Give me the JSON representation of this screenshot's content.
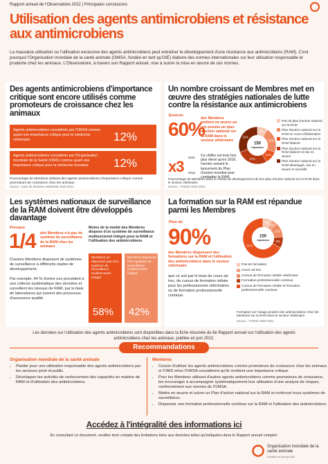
{
  "header": {
    "report": "Rapport annuel de l'Observatoire 2022 | Principales conclusions",
    "title": "Utilisation des agents antimicrobiens et résistance aux antimicrobiens"
  },
  "intro": "La mauvaise utilisation ou l'utilisation excessive des agents antimicrobiens peut entraîner le développement d'une résistance aux antimicrobiens (RAM). C'est pourquoi l'Organisation mondiale de la santé animale (OMSA, fondée en tant qu'OIE) élabore des normes internationales sur leur utilisation responsable et prudente chez les animaux. L'Observatoire, à travers son Rapport annuel, vise à suivre la mise en œuvre de ces normes.",
  "section1": {
    "title": "Des agents antimicrobiens d'importance critique sont encore utilisés comme promoteurs de croissance chez les animaux",
    "stats": [
      {
        "text": "Agents antimicrobiens considérés par l'OMSA comme ayant une importance critique pour la médecine vétérinaire",
        "value": "12%"
      },
      {
        "text": "Agents antimicrobiens considérés par l'Organisation mondiale de la Santé (OMS) comme ayant une importance critique pour la médecine humaine",
        "value": "12%"
      }
    ],
    "note": "Pourcentage de Membres utilisant des agents antimicrobiens d'importance critique comme promoteurs de croissance chez les animaux",
    "source": "Source : base de données ANIMUSE 2020-2021"
  },
  "section2": {
    "title": "Un nombre croissant de Membres met en œuvre des stratégies nationales de lutte contre la résistance aux antimicrobiens",
    "prefix": "Environ",
    "big": "60%",
    "big_text": "des Membres mettent en œuvre ou ont soumis un plan d'action national sur la RAM dans le secteur vétérinaire",
    "times": "x3",
    "years": [
      "2021",
      "2016"
    ],
    "times_text": "Ce chiffre est trois fois plus élevé qu'en 2016, l'année suivant le lancement du Plan d'action mondial pour combattre la RAM",
    "donut": {
      "center": [
        "150",
        "réponses"
      ],
      "segments": [
        {
          "label": "Pas de plan d'action national sur la RAM",
          "value": 9,
          "value_label": "9%",
          "color": "#f7c9b3"
        },
        {
          "label": "Plan d'action national sur la RAM en cours d'élaboration",
          "value": 22,
          "value_label": "22%",
          "color": "#f08c63"
        },
        {
          "label": "Plan d'action national sur la RAM élaboré",
          "value": 11,
          "value_label": "11%",
          "color": "#e8501c"
        },
        {
          "label": "Plan d'action national sur la RAM élaboré et mis en œuvre",
          "value": 27,
          "value_label": "27%",
          "color": "#b73a12"
        },
        {
          "label": "Plan d'action national sur la RAM développé, mis en œuvre et surveillé",
          "value": 31,
          "value_label": "31%",
          "color": "#7d2608"
        }
      ]
    },
    "note": "Pourcentage de Membres selon le niveau de développement de leur plan d'action national sur la RAM dans le secteur vétérinaire",
    "source": "Source : THOSS 2020-2021"
  },
  "section3": {
    "title": "Les systèmes nationaux de surveillance de la RAM doivent être développés davantage",
    "prefix": "Presque",
    "big": "1/4",
    "big_text": "des Membres n'a pas de système de surveillance de la RAM chez les animaux",
    "para1": "D'autres Membres disposent de systèmes de surveillance à différents stades de développement.",
    "para2": "Par exemple, 44 % d'entre eux procèdent à une collecte systématique des données et surveillent les niveaux de RAM, par le biais de laboratoires qui suivent des processus d'assurance qualité.",
    "box_title": "Moins de la moitié des Membres dispose d'un système de surveillance multisectoriel intégré pour la RAM et l'utilisation des antimicrobiens",
    "bars": [
      {
        "text": "Membres ne disposant pas d'un système de surveillance multisectoriel intégré",
        "value": "58%"
      },
      {
        "text": "Membres disposant d'un système de surveillance multisectoriel intégré",
        "value": "42%"
      }
    ]
  },
  "section4": {
    "title": "La formation sur la RAM est répandue parmi les Membres",
    "prefix": "Plus de",
    "big": "90%",
    "big_text": "des Membres dispensent des formations sur la RAM et l'utilisation des antimicrobiens dans le secteur vétérinaire",
    "para": "que ce soit par le biais de cours ad hoc, de cursus de formation initiale pour les professionnels vétérinaires ou de formation professionnelle continue.",
    "donut": {
      "center": [
        "150",
        "réponses"
      ],
      "segments": [
        {
          "label": "Pas de formation",
          "value": 7,
          "value_label": "7%",
          "color": "#f7c9b3"
        },
        {
          "label": "Cours ad hoc",
          "value": 5,
          "value_label": "5%",
          "color": "#f3a583"
        },
        {
          "label": "Cursus de formation initiale vétérinaire",
          "value": 12,
          "value_label": "12%",
          "color": "#f08c63"
        },
        {
          "label": "Formation professionnelle continue",
          "value": 9,
          "value_label": "9%",
          "color": "#b73a12"
        },
        {
          "label": "Cursus de formation initiale et formation professionnelle continue",
          "value": 67,
          "value_label": "67%",
          "color": "#e8501c"
        }
      ]
    },
    "note": "Formation sur l'usage prudent des antimicrobiens chez les Membres sur la RAM dans le secteur vétérinaire",
    "source": "Source : THOSS 2020-2021"
  },
  "data_note": "Les données sur l'utilisation des agents antimicrobiens sont disponibles dans la fiche résumée du 6e Rapport annuel sur l'utilisation des agents antimicrobiens chez les animaux, publiée en juin 2022.",
  "recommendations": {
    "title": "Recommandations",
    "left": {
      "heading": "Organisation mondiale de la santé animale",
      "items": [
        "Plaider pour une utilisation responsable des agents antimicrobiens par les secteurs privé et public.",
        "Développer les activités de renforcement des capacités en matière de RAM et d'utilisation des antimicrobiens."
      ]
    },
    "right": {
      "heading": "Membres",
      "items": [
        "Cesser d'utiliser les agents antimicrobiens comme promoteurs de croissance chez les animaux si l'OMS et/ou l'OMSA considèrent qu'ils revêtent une importance critique.",
        "Pour les Membres utilisant d'autres agents antimicrobiens comme promoteurs de croissance, les encourager à accompagner systématiquement leur utilisation d'une analyse de risques, conformément aux normes de l'OMSA.",
        "Mettre en œuvre et suivre un Plan d'action national sur la RAM et renforcer leurs systèmes de surveillance.",
        "Dispenser une formation professionnelle continue sur la RAM et l'utilisation des antimicrobiens."
      ]
    }
  },
  "footer": {
    "cta": "Accédez à l'intégralité des informations ici",
    "disclaimer": "En consultant ce document, veuillez tenir compte des limitations liées aux données telles qu'indiquées dans le Rapport annuel complet.",
    "org": "Organisation mondiale de la santé animale",
    "founded": "Fondée en tant qu'OIE"
  }
}
